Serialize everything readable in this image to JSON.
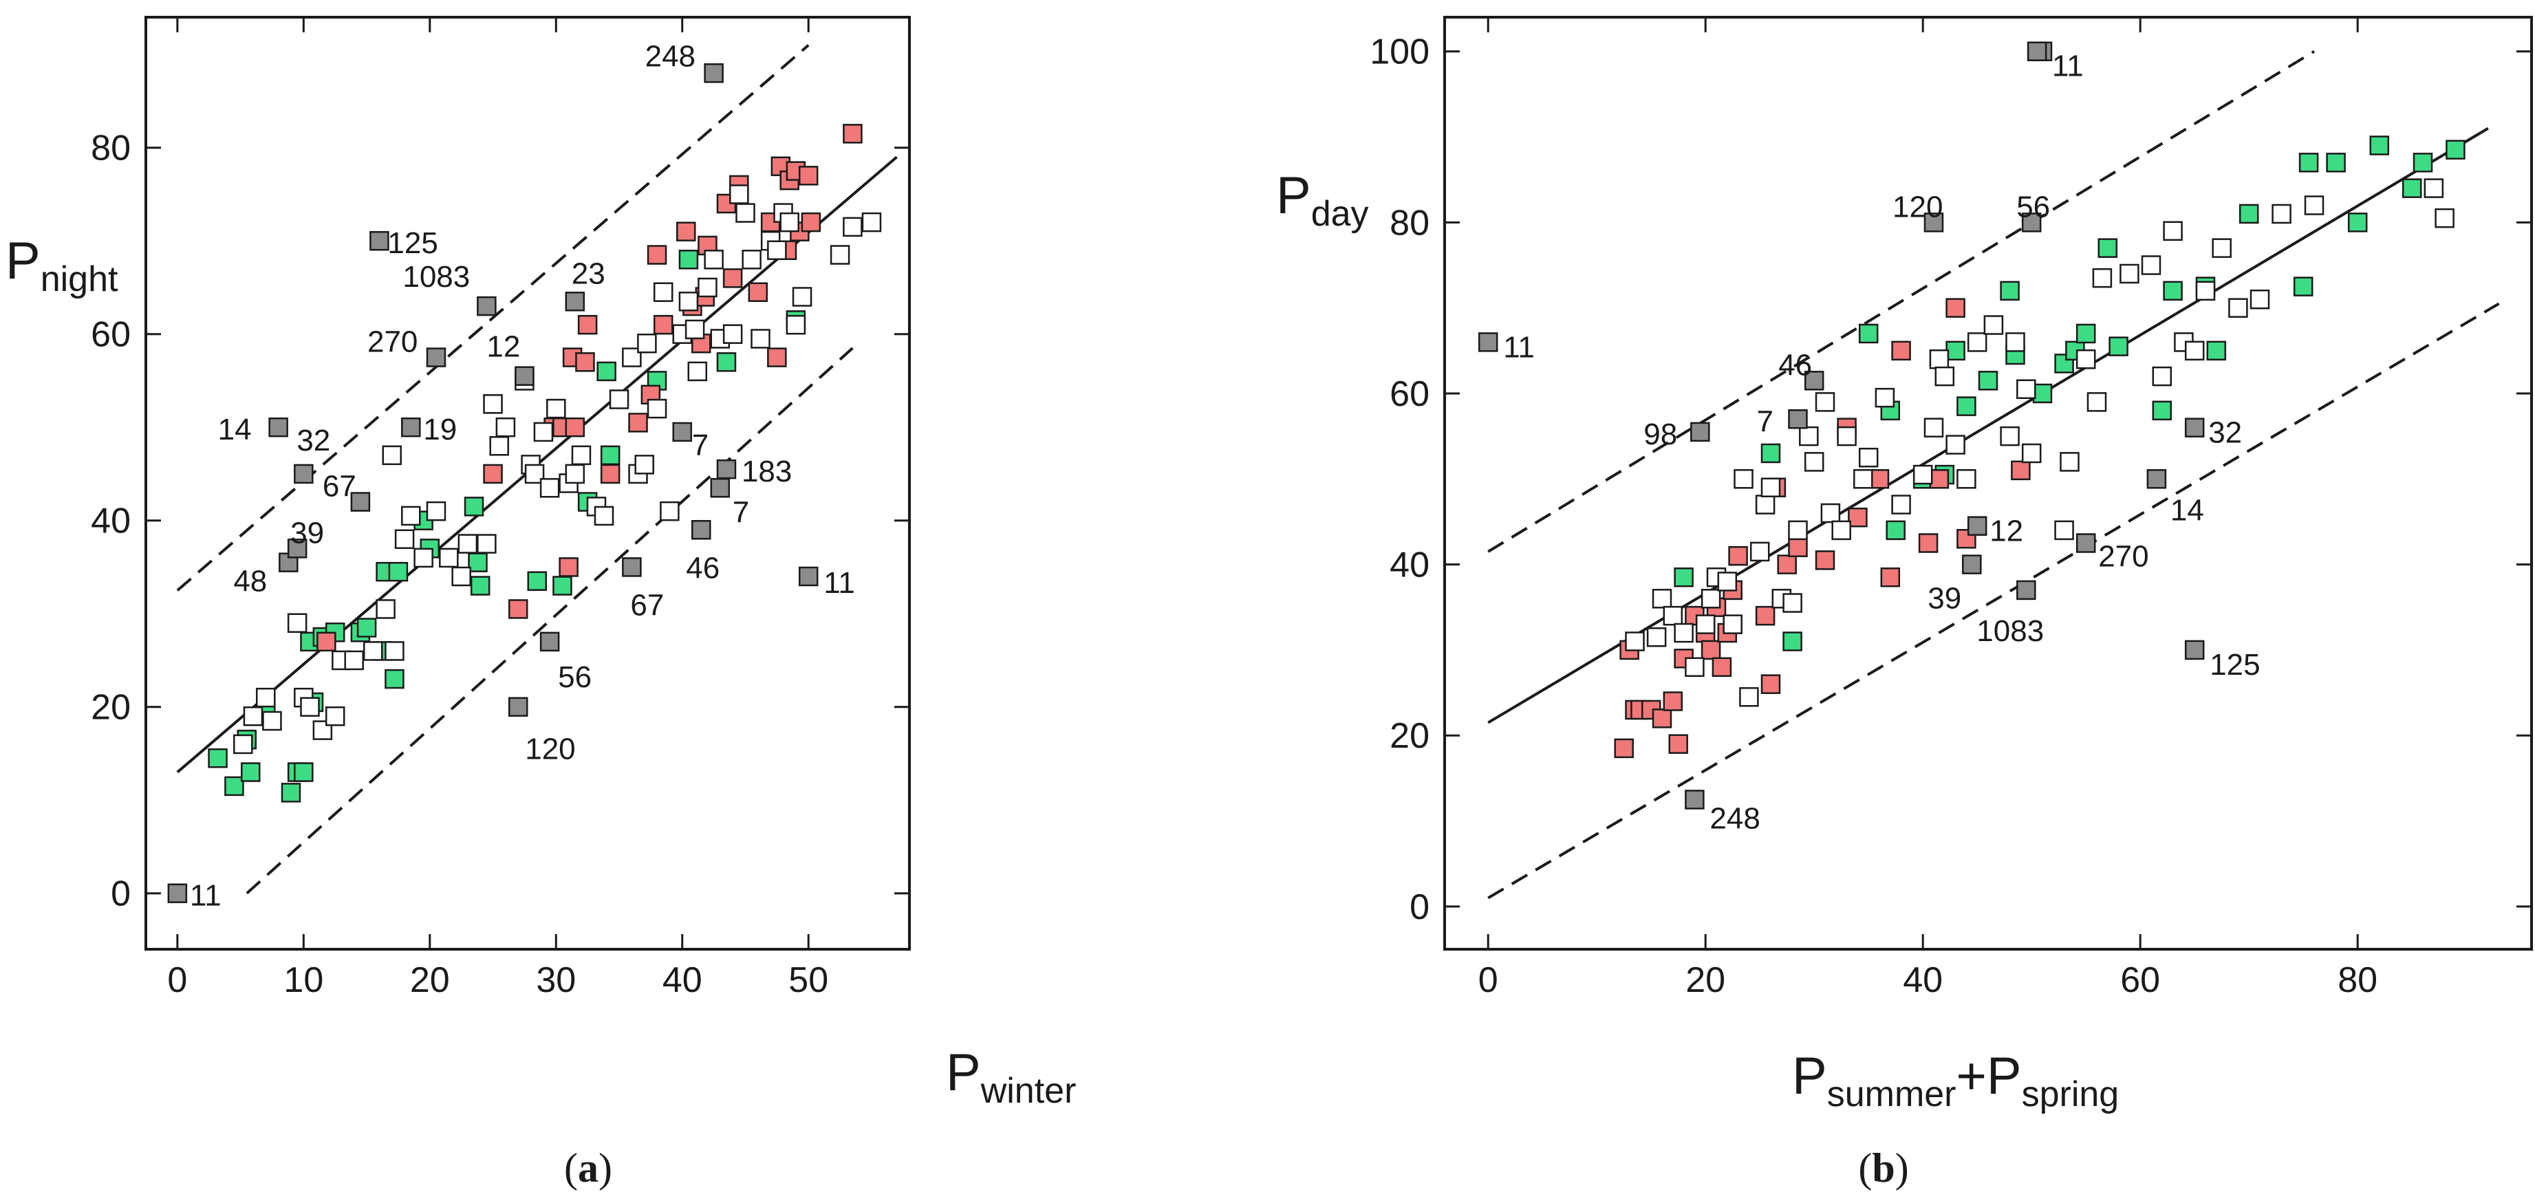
{
  "colors": {
    "green": "#3ddc84",
    "red": "#f07878",
    "gray": "#8c8c8c",
    "white": "#ffffff",
    "stroke": "#1a1a1a"
  },
  "chart_data": [
    {
      "type": "scatter",
      "panel_label": {
        "open": "(",
        "letter": "a",
        "close": ")"
      },
      "title": "",
      "ylabel": {
        "main": "P",
        "sub": "night"
      },
      "xlabel": {
        "main": "P",
        "sub": "winter"
      },
      "xlim": [
        -2.5,
        58
      ],
      "ylim": [
        -6,
        94
      ],
      "xticks": [
        0,
        10,
        20,
        30,
        40,
        50
      ],
      "yticks": [
        0,
        20,
        40,
        60,
        80
      ],
      "fit_line": {
        "x": [
          0,
          57
        ],
        "y": [
          13,
          79
        ]
      },
      "upper_band": {
        "x": [
          0,
          50
        ],
        "y": [
          32.5,
          91
        ]
      },
      "lower_band": {
        "x": [
          5.5,
          53.5
        ],
        "y": [
          0,
          58.5
        ]
      },
      "series": [
        {
          "name": "green",
          "x": [
            3.2,
            4.5,
            5.5,
            5.8,
            7,
            9,
            9.5,
            10,
            10.5,
            10.8,
            11.5,
            12.5,
            14.5,
            15,
            16.3,
            16.5,
            17.2,
            17.5,
            19.5,
            20,
            23.5,
            23.8,
            24,
            28.5,
            30.5,
            32.5,
            34,
            34.3,
            38,
            40.5,
            43.5,
            49
          ],
          "y": [
            14.5,
            11.5,
            16.5,
            13,
            20,
            10.8,
            13,
            13,
            27,
            20.5,
            27.5,
            28,
            28,
            28.5,
            26,
            34.5,
            23,
            34.5,
            40,
            37,
            41.5,
            35.5,
            33,
            33.5,
            33,
            42,
            56,
            47,
            55,
            68,
            57,
            61.5
          ]
        },
        {
          "name": "red",
          "x": [
            11.8,
            25,
            27,
            29.8,
            30.5,
            31,
            31.3,
            31.5,
            32.3,
            32.5,
            34.3,
            36.5,
            37.5,
            38,
            38.5,
            40.3,
            40.8,
            41.5,
            41.8,
            42,
            43.5,
            44,
            44.5,
            46,
            47,
            47.5,
            47.8,
            48.3,
            48.5,
            49,
            49.3,
            50,
            50.2,
            53.5
          ],
          "y": [
            27,
            45,
            30.5,
            50,
            50,
            35,
            57.5,
            50,
            57,
            61,
            45,
            50.5,
            53.5,
            68.5,
            61,
            71,
            63,
            59,
            64,
            69.5,
            74,
            66,
            76,
            64.5,
            72,
            57.5,
            78,
            69,
            76.5,
            77.5,
            71,
            77,
            72,
            81.5
          ]
        },
        {
          "name": "white",
          "x": [
            5.2,
            6,
            7,
            7.5,
            9.5,
            10,
            10.5,
            11.5,
            12.5,
            13,
            14,
            15.5,
            16.5,
            17,
            17.2,
            18,
            18.5,
            19.5,
            20.5,
            21.5,
            22.5,
            23,
            24.5,
            25,
            25.5,
            26,
            27.5,
            28,
            28.3,
            29,
            29.5,
            30,
            31,
            31.5,
            32,
            33.2,
            33.8,
            35,
            36,
            36.5,
            37,
            37.2,
            38,
            38.5,
            39,
            40,
            40.5,
            41,
            41.2,
            42,
            42.5,
            43,
            44,
            44.5,
            45,
            45.5,
            46.2,
            47,
            47.5,
            48,
            48.5,
            49,
            49.5,
            52.5,
            53.5,
            55
          ],
          "y": [
            16,
            19,
            21,
            18.5,
            29,
            21,
            20,
            17.5,
            19,
            25,
            25,
            26,
            30.5,
            47,
            26,
            38,
            40.5,
            36,
            41,
            36,
            34,
            37.5,
            37.5,
            52.5,
            48,
            50,
            55,
            46,
            45,
            49.5,
            43.5,
            52,
            44,
            45,
            47,
            41.5,
            40.5,
            53,
            57.5,
            45,
            46,
            59,
            52,
            64.5,
            41,
            60,
            63.5,
            60.5,
            56,
            65,
            68,
            59.5,
            60,
            75,
            73,
            68,
            59.5,
            70,
            69,
            73,
            72,
            61,
            64,
            68.5,
            71.5,
            72
          ]
        },
        {
          "name": "gray",
          "x": [
            0,
            8,
            8.8,
            9.5,
            10,
            14.5,
            16,
            18.5,
            20.5,
            24.5,
            27.5,
            27,
            29.5,
            31.5,
            36,
            40,
            41.5,
            42.5,
            43,
            43.5,
            50
          ],
          "y": [
            0,
            50,
            35.5,
            37,
            45,
            42,
            70,
            50,
            57.5,
            63,
            55.5,
            20,
            27,
            63.5,
            35,
            49.5,
            39,
            88,
            43.5,
            45.5,
            34
          ]
        }
      ],
      "annotations": [
        {
          "text": "11",
          "x": 0,
          "y": 0
        },
        {
          "text": "14",
          "x": 8,
          "y": 50
        },
        {
          "text": "32",
          "x": 10,
          "y": 45
        },
        {
          "text": "39",
          "x": 9.5,
          "y": 37
        },
        {
          "text": "48",
          "x": 8.8,
          "y": 35.5
        },
        {
          "text": "67",
          "x": 14.5,
          "y": 42
        },
        {
          "text": "125",
          "x": 16,
          "y": 70
        },
        {
          "text": "19",
          "x": 18.5,
          "y": 50
        },
        {
          "text": "270",
          "x": 20.5,
          "y": 57.5
        },
        {
          "text": "1083",
          "x": 24.5,
          "y": 63
        },
        {
          "text": "12",
          "x": 27.5,
          "y": 55.5
        },
        {
          "text": "23",
          "x": 31.5,
          "y": 63.5
        },
        {
          "text": "248",
          "x": 42.5,
          "y": 88
        },
        {
          "text": "7",
          "x": 40,
          "y": 49.5
        },
        {
          "text": "183",
          "x": 43.5,
          "y": 45.5
        },
        {
          "text": "7",
          "x": 43,
          "y": 43.5
        },
        {
          "text": "46",
          "x": 41.5,
          "y": 39
        },
        {
          "text": "67",
          "x": 36,
          "y": 35
        },
        {
          "text": "11",
          "x": 50,
          "y": 34
        },
        {
          "text": "56",
          "x": 29.5,
          "y": 27
        },
        {
          "text": "120",
          "x": 27,
          "y": 20
        }
      ]
    },
    {
      "type": "scatter",
      "panel_label": {
        "open": "(",
        "letter": "b",
        "close": ")"
      },
      "title": "",
      "ylabel": {
        "main": "P",
        "sub": "day"
      },
      "xlabel": {
        "main": "P",
        "sub1": "summer",
        "plus": "+P",
        "sub2": "spring"
      },
      "xlim": [
        -4,
        96
      ],
      "ylim": [
        -5,
        104
      ],
      "xticks": [
        0,
        20,
        40,
        60,
        80
      ],
      "yticks": [
        0,
        20,
        40,
        60,
        80,
        100
      ],
      "fit_line": {
        "x": [
          0,
          92
        ],
        "y": [
          21.5,
          91
        ]
      },
      "upper_band": {
        "x": [
          0,
          76
        ],
        "y": [
          41.5,
          100
        ]
      },
      "lower_band": {
        "x": [
          0,
          93
        ],
        "y": [
          1,
          70.5
        ]
      },
      "series": [
        {
          "name": "green",
          "x": [
            18,
            26,
            28,
            35,
            37,
            37.5,
            40,
            42,
            43,
            44,
            46,
            48,
            48.5,
            51,
            53,
            54,
            55,
            57,
            58,
            62,
            63,
            66,
            67,
            70,
            75,
            75.5,
            78,
            80,
            82,
            85,
            86,
            89
          ],
          "y": [
            38.5,
            53,
            31,
            67,
            58,
            44,
            50,
            50.5,
            65,
            58.5,
            61.5,
            72,
            64.5,
            60,
            63.5,
            65,
            67,
            77,
            65.5,
            58,
            72,
            72.5,
            65,
            81,
            72.5,
            87,
            87,
            80,
            89,
            84,
            87,
            88.5
          ]
        },
        {
          "name": "red",
          "x": [
            12.5,
            13.5,
            13,
            14,
            15,
            16,
            17,
            17.5,
            18,
            19,
            20,
            20.5,
            21,
            21.5,
            22,
            22.5,
            23,
            25.5,
            26,
            26.5,
            27.5,
            28.5,
            31,
            33,
            34,
            36,
            37,
            38,
            40.5,
            41.5,
            43,
            44,
            49
          ],
          "y": [
            18.5,
            23,
            30,
            23,
            23,
            22,
            24,
            19,
            29,
            34,
            32,
            30,
            35,
            28,
            32,
            37,
            41,
            34,
            26,
            49,
            40,
            42,
            40.5,
            56,
            45.5,
            50,
            38.5,
            65,
            42.5,
            50,
            70,
            43,
            51
          ]
        },
        {
          "name": "white",
          "x": [
            13.5,
            15.5,
            16,
            17,
            18,
            19,
            20,
            20.5,
            21,
            22,
            22.5,
            23.5,
            24,
            25,
            25.5,
            26,
            27,
            28,
            28.5,
            29.5,
            30,
            31,
            31.5,
            32.5,
            33,
            34.5,
            35,
            36.5,
            38,
            40,
            41,
            41.5,
            42,
            43,
            44,
            45,
            46.5,
            48,
            48.5,
            49.5,
            50,
            53,
            53.5,
            55,
            56,
            56.5,
            59,
            61,
            62,
            63,
            64,
            65,
            66,
            67.5,
            69,
            71,
            73,
            76,
            87,
            88
          ],
          "y": [
            31,
            31.5,
            36,
            34,
            32,
            28,
            33,
            36,
            38.5,
            38,
            33,
            50,
            24.5,
            41.5,
            47,
            49,
            36,
            35.5,
            44,
            55,
            52,
            59,
            46,
            44,
            55,
            50,
            52.5,
            59.5,
            47,
            50.5,
            56,
            64,
            62,
            54,
            50,
            66,
            68,
            55,
            66,
            60.5,
            53,
            44,
            52,
            64,
            59,
            73.5,
            74,
            75,
            62,
            79,
            66,
            65,
            72,
            77,
            70,
            71,
            81,
            82,
            84,
            80.5
          ]
        },
        {
          "name": "gray",
          "x": [
            0,
            19.5,
            19,
            28.5,
            30,
            41,
            44.5,
            45,
            49.5,
            50,
            51,
            55,
            61.5,
            65,
            65,
            50.5
          ],
          "y": [
            66,
            55.5,
            12.5,
            57,
            61.5,
            80,
            40,
            44.5,
            37,
            80,
            100,
            42.5,
            50,
            56,
            30,
            100
          ]
        }
      ],
      "annotations": [
        {
          "text": "11",
          "x": 51,
          "y": 100
        },
        {
          "text": "120",
          "x": 41,
          "y": 80
        },
        {
          "text": "56",
          "x": 50,
          "y": 80
        },
        {
          "text": "11",
          "x": 0,
          "y": 66
        },
        {
          "text": "46",
          "x": 30,
          "y": 61.5
        },
        {
          "text": "98",
          "x": 19.5,
          "y": 55.5
        },
        {
          "text": "7",
          "x": 28.5,
          "y": 57
        },
        {
          "text": "12",
          "x": 45,
          "y": 44.5
        },
        {
          "text": "39",
          "x": 44.5,
          "y": 40
        },
        {
          "text": "1083",
          "x": 49.5,
          "y": 37
        },
        {
          "text": "270",
          "x": 55,
          "y": 42.5
        },
        {
          "text": "32",
          "x": 65,
          "y": 56
        },
        {
          "text": "14",
          "x": 61.5,
          "y": 50
        },
        {
          "text": "125",
          "x": 65,
          "y": 30
        },
        {
          "text": "248",
          "x": 19,
          "y": 12.5
        }
      ]
    }
  ]
}
